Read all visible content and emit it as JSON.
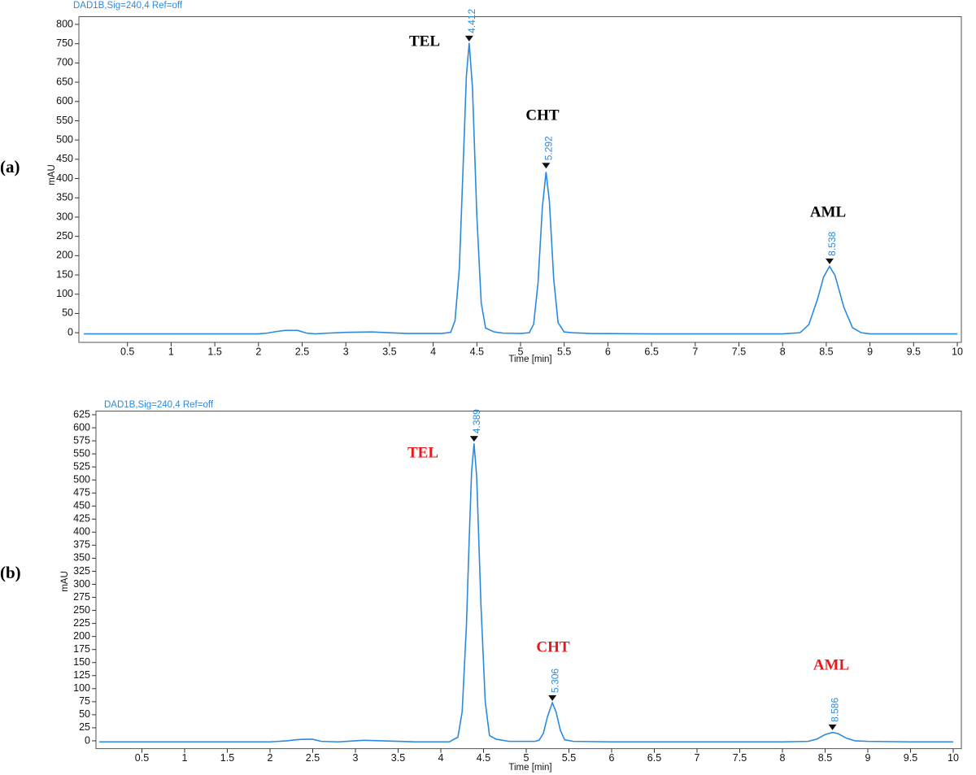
{
  "chart_data": [
    {
      "type": "line",
      "panel_label": "(a)",
      "subtitle": "DAD1B,Sig=240,4  Ref=off",
      "ylabel": "mAU",
      "xlabel": "Time [min]",
      "color": "#2a8ae0",
      "label_color": "#000000",
      "grid": false,
      "xlim": [
        0,
        10
      ],
      "xticks": [
        0.5,
        1,
        1.5,
        2,
        2.5,
        3,
        3.5,
        4,
        4.5,
        5,
        5.5,
        6,
        6.5,
        7,
        7.5,
        8,
        8.5,
        9,
        9.5,
        10
      ],
      "ylim": [
        -25,
        820
      ],
      "yticks": [
        0,
        50,
        100,
        150,
        200,
        250,
        300,
        350,
        400,
        450,
        500,
        550,
        600,
        650,
        700,
        750,
        800
      ],
      "x": [
        0,
        0.5,
        1,
        1.5,
        2,
        2.1,
        2.2,
        2.3,
        2.45,
        2.55,
        2.65,
        2.8,
        3.0,
        3.3,
        3.5,
        3.7,
        4.1,
        4.2,
        4.25,
        4.3,
        4.35,
        4.38,
        4.412,
        4.45,
        4.5,
        4.55,
        4.6,
        4.7,
        4.8,
        5.0,
        5.1,
        5.15,
        5.2,
        5.25,
        5.292,
        5.33,
        5.38,
        5.43,
        5.5,
        5.6,
        5.8,
        6.5,
        7.5,
        8.0,
        8.2,
        8.3,
        8.4,
        8.47,
        8.538,
        8.6,
        8.7,
        8.8,
        8.9,
        9.0,
        9.2,
        10
      ],
      "values": [
        -3,
        -3,
        -3,
        -3,
        -3,
        -1,
        3,
        6,
        6,
        -1,
        -3,
        -1,
        1,
        2,
        0,
        -2,
        -2,
        1,
        31,
        168,
        476,
        666,
        752,
        635,
        302,
        77,
        12,
        2,
        -1,
        -2,
        0,
        22,
        128,
        326,
        417,
        342,
        139,
        26,
        2,
        0,
        -2,
        -3,
        -3,
        -3,
        0,
        21,
        87,
        145,
        172,
        149,
        67,
        13,
        0,
        -3,
        -3,
        -3
      ],
      "peaks": [
        {
          "name": "TEL",
          "rt": 4.412,
          "height": 758
        },
        {
          "name": "CHT",
          "rt": 5.292,
          "height": 428
        },
        {
          "name": "AML",
          "rt": 8.538,
          "height": 180
        }
      ]
    },
    {
      "type": "line",
      "panel_label": "(b)",
      "subtitle": "DAD1B,Sig=240,4  Ref=off",
      "ylabel": "mAU",
      "xlabel": "Time [min]",
      "color": "#2a8ae0",
      "label_color": "#e8191c",
      "grid": false,
      "xlim": [
        0,
        10
      ],
      "xticks": [
        0.5,
        1,
        1.5,
        2,
        2.5,
        3,
        3.5,
        4,
        4.5,
        5,
        5.5,
        6,
        6.5,
        7,
        7.5,
        8,
        8.5,
        9,
        9.5,
        10
      ],
      "ylim": [
        -15,
        632
      ],
      "yticks": [
        0,
        25,
        50,
        75,
        100,
        125,
        150,
        175,
        200,
        225,
        250,
        275,
        300,
        325,
        350,
        375,
        400,
        425,
        450,
        475,
        500,
        525,
        550,
        575,
        600,
        625
      ],
      "x": [
        0,
        0.5,
        1,
        1.5,
        2,
        2.2,
        2.3,
        2.4,
        2.5,
        2.6,
        2.8,
        3.0,
        3.1,
        3.3,
        3.7,
        4.1,
        4.2,
        4.25,
        4.3,
        4.33,
        4.36,
        4.389,
        4.42,
        4.47,
        4.52,
        4.57,
        4.65,
        4.8,
        5.1,
        5.15,
        5.2,
        5.25,
        5.306,
        5.35,
        5.4,
        5.45,
        5.55,
        6.0,
        7.0,
        8.0,
        8.3,
        8.4,
        8.5,
        8.586,
        8.65,
        8.75,
        8.85,
        9.0,
        9.5,
        10
      ],
      "values": [
        -2,
        -2,
        -2,
        -2,
        -2,
        0,
        2,
        3,
        3,
        -1,
        -2,
        0,
        1,
        0,
        -2,
        -2,
        7,
        56,
        222,
        376,
        515,
        570,
        506,
        260,
        75,
        10,
        3,
        -1,
        -1,
        1,
        14,
        47,
        73,
        55,
        20,
        2,
        -1,
        -2,
        -2,
        -2,
        -1,
        3,
        12,
        16,
        14,
        5,
        0,
        -1,
        -2,
        -2
      ],
      "peaks": [
        {
          "name": "TEL",
          "rt": 4.389,
          "height": 575
        },
        {
          "name": "CHT",
          "rt": 5.306,
          "height": 78
        },
        {
          "name": "AML",
          "rt": 8.586,
          "height": 22
        }
      ]
    }
  ]
}
